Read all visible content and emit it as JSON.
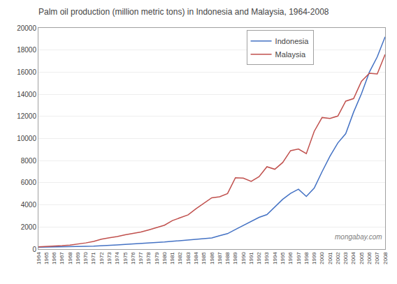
{
  "chart_data": {
    "type": "line",
    "title": "Palm oil production (million metric tons) in Indonesia and Malaysia, 1964-2008",
    "x": [
      1964,
      1965,
      1966,
      1967,
      1968,
      1969,
      1970,
      1971,
      1972,
      1973,
      1974,
      1975,
      1976,
      1977,
      1978,
      1979,
      1980,
      1981,
      1982,
      1983,
      1984,
      1985,
      1986,
      1987,
      1988,
      1989,
      1990,
      1991,
      1992,
      1993,
      1994,
      1995,
      1996,
      1997,
      1998,
      1999,
      2000,
      2001,
      2002,
      2003,
      2004,
      2005,
      2006,
      2007,
      2008
    ],
    "series": [
      {
        "name": "Indonesia",
        "color": "#4472C4",
        "values": [
          180,
          185,
          195,
          205,
          215,
          225,
          245,
          265,
          290,
          330,
          380,
          420,
          460,
          510,
          540,
          580,
          640,
          710,
          770,
          830,
          880,
          950,
          1010,
          1220,
          1400,
          1770,
          2120,
          2520,
          2870,
          3120,
          3820,
          4500,
          5040,
          5415,
          4760,
          5520,
          7000,
          8400,
          9600,
          10440,
          12390,
          14050,
          16000,
          17380,
          19200
        ]
      },
      {
        "name": "Malaysia",
        "color": "#C0504D",
        "values": [
          200,
          230,
          270,
          310,
          370,
          460,
          560,
          700,
          900,
          1020,
          1130,
          1290,
          1400,
          1540,
          1740,
          1960,
          2160,
          2580,
          2860,
          3100,
          3650,
          4130,
          4640,
          4730,
          5020,
          6450,
          6420,
          6120,
          6550,
          7450,
          7220,
          7830,
          8900,
          9050,
          8630,
          10650,
          11900,
          11820,
          12030,
          13380,
          13610,
          15180,
          15900,
          15840,
          17600
        ]
      }
    ],
    "xlim": [
      1964,
      2008
    ],
    "xticks": [
      1964,
      1965,
      1966,
      1967,
      1968,
      1969,
      1970,
      1971,
      1972,
      1973,
      1974,
      1975,
      1976,
      1977,
      1978,
      1979,
      1980,
      1981,
      1982,
      1983,
      1984,
      1985,
      1986,
      1987,
      1988,
      1989,
      1990,
      1991,
      1992,
      1993,
      1994,
      1995,
      1996,
      1997,
      1998,
      1999,
      2000,
      2001,
      2002,
      2003,
      2004,
      2005,
      2006,
      2007,
      2008
    ],
    "ylim": [
      0,
      20000
    ],
    "yticks": [
      0,
      2000,
      4000,
      6000,
      8000,
      10000,
      12000,
      14000,
      16000,
      18000,
      20000
    ],
    "grid": "y",
    "legend": "upper right",
    "annotations": [
      "mongabay.com"
    ]
  }
}
